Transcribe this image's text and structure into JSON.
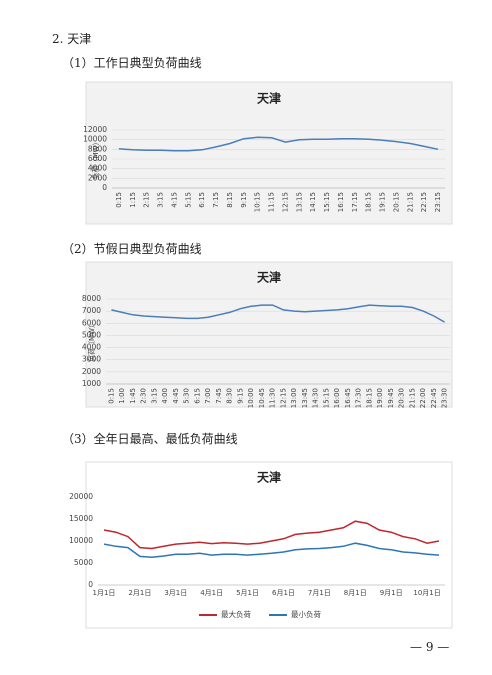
{
  "heading": "2. 天津",
  "sections": [
    "（1）工作日典型负荷曲线",
    "（2）节假日典型负荷曲线",
    "（3）全年日最高、最低负荷曲线"
  ],
  "page_number": "— 9 —",
  "chart_data": [
    {
      "type": "line",
      "title": "天津",
      "y_label": "负荷（MW）",
      "color": "#4a7ebb",
      "categories": [
        "0:15",
        "1:15",
        "2:15",
        "3:15",
        "4:15",
        "5:15",
        "6:15",
        "7:15",
        "8:15",
        "9:15",
        "10:15",
        "11:15",
        "12:15",
        "13:15",
        "14:15",
        "15:15",
        "16:15",
        "17:15",
        "18:15",
        "19:15",
        "20:15",
        "21:15",
        "22:15",
        "23:15"
      ],
      "values": [
        8100,
        7900,
        7800,
        7800,
        7700,
        7700,
        7900,
        8500,
        9200,
        10200,
        10500,
        10400,
        9500,
        10000,
        10100,
        10100,
        10200,
        10200,
        10100,
        9900,
        9600,
        9200,
        8600,
        8000
      ],
      "ylim": [
        0,
        12000
      ],
      "yticks": [
        0,
        2000,
        4000,
        6000,
        8000,
        10000,
        12000
      ],
      "grid": true
    },
    {
      "type": "line",
      "title": "天津",
      "y_label": "负荷（MW）",
      "color": "#4a7ebb",
      "categories": [
        "0:15",
        "1:00",
        "1:45",
        "2:30",
        "3:15",
        "4:00",
        "4:45",
        "5:30",
        "6:15",
        "7:00",
        "7:45",
        "8:30",
        "9:15",
        "10:00",
        "10:45",
        "11:30",
        "12:15",
        "13:00",
        "13:45",
        "14:30",
        "15:15",
        "16:00",
        "16:45",
        "17:30",
        "18:15",
        "19:00",
        "19:45",
        "20:30",
        "21:15",
        "22:00",
        "22:45",
        "23:30"
      ],
      "values": [
        7100,
        6900,
        6700,
        6600,
        6550,
        6500,
        6450,
        6400,
        6400,
        6500,
        6700,
        6900,
        7200,
        7400,
        7500,
        7500,
        7100,
        7000,
        6950,
        7000,
        7050,
        7100,
        7200,
        7350,
        7500,
        7450,
        7400,
        7400,
        7300,
        7000,
        6600,
        6100
      ],
      "ylim": [
        1000,
        8000
      ],
      "yticks": [
        1000,
        2000,
        3000,
        4000,
        5000,
        6000,
        7000,
        8000
      ],
      "grid": true
    },
    {
      "type": "line",
      "title": "天津",
      "legend": "bottom",
      "categories": [
        "1月1日",
        null,
        null,
        "2月1日",
        null,
        null,
        "3月1日",
        null,
        null,
        "4月1日",
        null,
        null,
        "5月1日",
        null,
        null,
        "6月1日",
        null,
        null,
        "7月1日",
        null,
        null,
        "8月1日",
        null,
        null,
        "9月1日",
        null,
        null,
        "10月1日",
        null
      ],
      "series": [
        {
          "name": "最大负荷",
          "color": "#c0272d",
          "values": [
            12500,
            12000,
            11000,
            8500,
            8300,
            8800,
            9300,
            9500,
            9700,
            9400,
            9600,
            9500,
            9300,
            9500,
            10000,
            10500,
            11500,
            11800,
            12000,
            12500,
            13000,
            14500,
            14000,
            12500,
            12000,
            11000,
            10500,
            9500,
            10000
          ]
        },
        {
          "name": "最小负荷",
          "color": "#2e75b6",
          "values": [
            9300,
            8800,
            8500,
            6500,
            6300,
            6600,
            7000,
            7000,
            7200,
            6800,
            7000,
            7000,
            6800,
            7000,
            7200,
            7500,
            8000,
            8200,
            8300,
            8500,
            8800,
            9500,
            9000,
            8300,
            8000,
            7500,
            7300,
            7000,
            6800
          ]
        }
      ],
      "ylim": [
        0,
        20000
      ],
      "yticks": [
        0,
        5000,
        10000,
        15000,
        20000
      ],
      "grid": false
    }
  ]
}
